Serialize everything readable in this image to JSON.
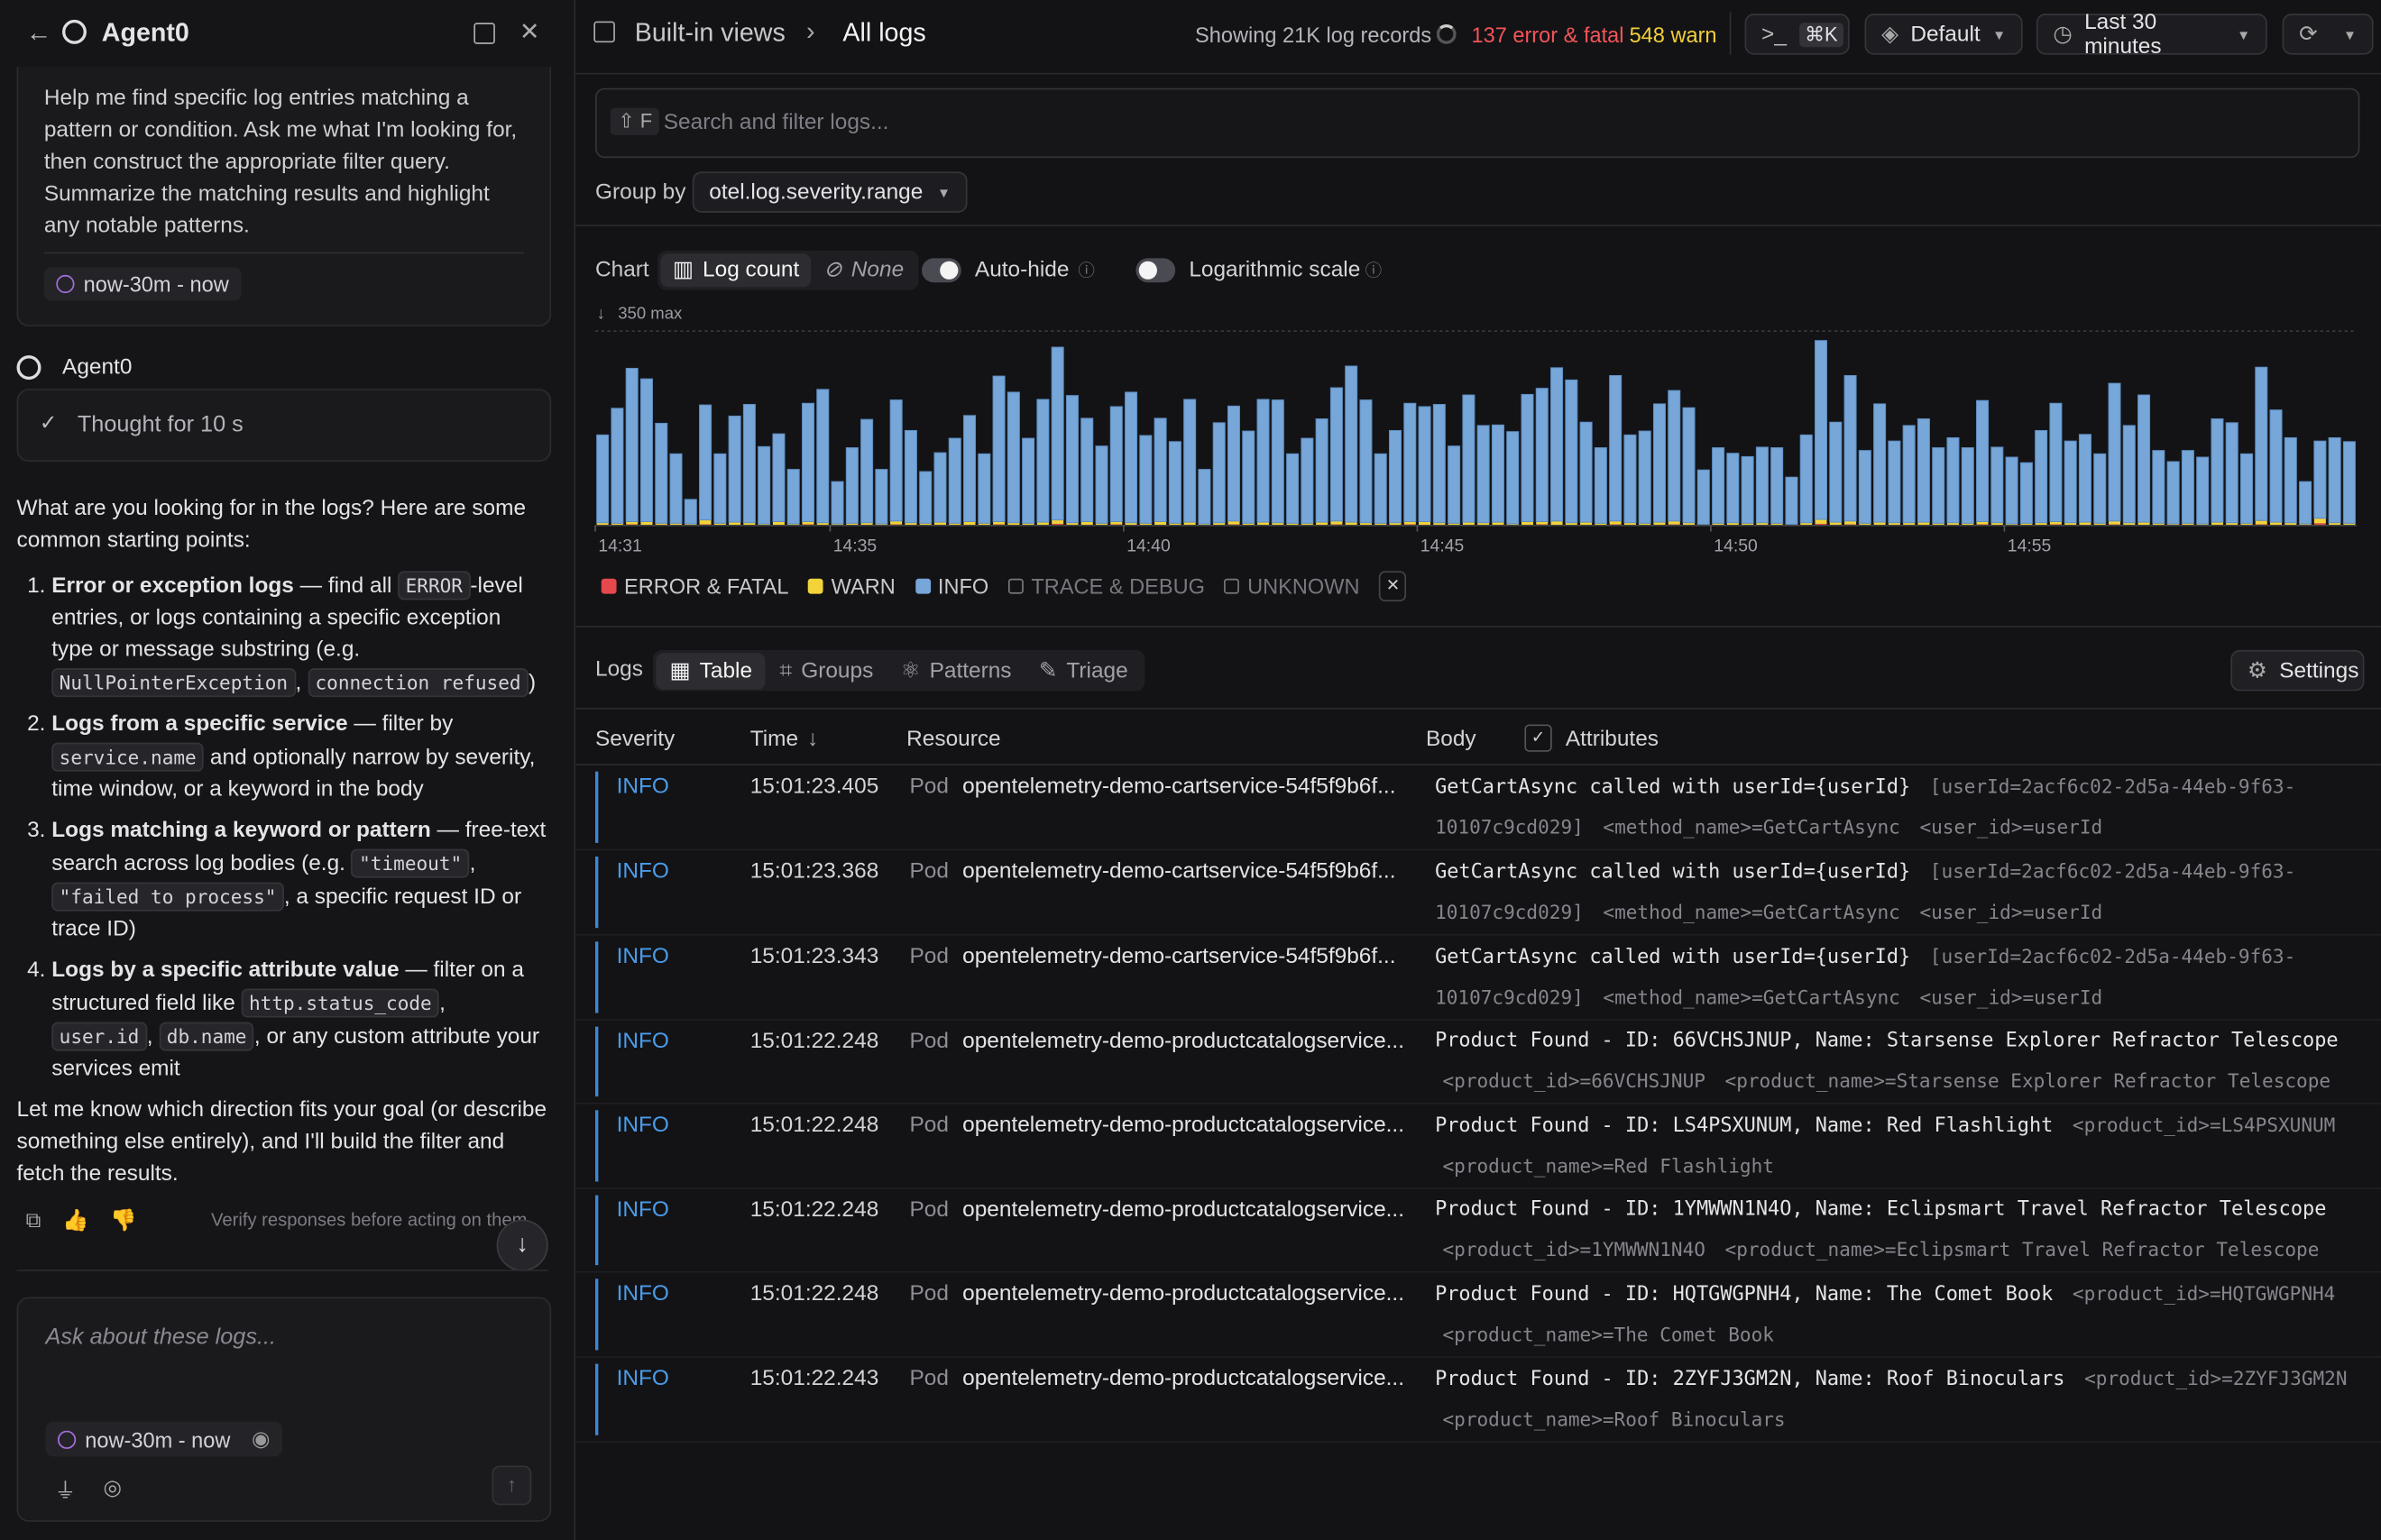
{
  "sidebar": {
    "title": "Agent0",
    "prompt": "Help me find specific log entries matching a pattern or condition. Ask me what I'm looking for, then construct the appropriate filter query. Summarize the matching results and highlight any notable patterns.",
    "prompt_range": "now-30m - now",
    "agent_name": "Agent0",
    "thought": "Thought for 10 s",
    "intro": "What are you looking for in the logs? Here are some common starting points:",
    "items": [
      {
        "title": "Error or exception logs",
        "parts": [
          " — find all ",
          {
            "code": "ERROR"
          },
          "-level entries, or logs containing a specific exception type or message substring (e.g. ",
          {
            "code": "NullPointerException"
          },
          ", ",
          {
            "code": "connection refused"
          },
          ")"
        ]
      },
      {
        "title": "Logs from a specific service",
        "parts": [
          " — filter by ",
          {
            "code": "service.name"
          },
          " and optionally narrow by severity, time window, or a keyword in the body"
        ]
      },
      {
        "title": "Logs matching a keyword or pattern",
        "parts": [
          " — free-text search across log bodies (e.g. ",
          {
            "code": "\"timeout\""
          },
          ", ",
          {
            "code": "\"failed to process\""
          },
          ", a specific request ID or trace ID)"
        ]
      },
      {
        "title": "Logs by a specific attribute value",
        "parts": [
          " — filter on a structured field like ",
          {
            "code": "http.status_code"
          },
          ", ",
          {
            "code": "user.id"
          },
          ", ",
          {
            "code": "db.name"
          },
          ", or any custom attribute your services emit"
        ]
      }
    ],
    "outro": "Let me know which direction fits your goal (or describe something else entirely), and I'll build the filter and fetch the results.",
    "disclaimer": "Verify responses before acting on them.",
    "input_placeholder": "Ask about these logs...",
    "input_range": "now-30m - now"
  },
  "header": {
    "breadcrumb": [
      "Built-in views",
      "All logs"
    ],
    "record_count": "Showing 21K log records",
    "errors": "137 error & fatal",
    "warnings": "548 warn",
    "shortcut": "⌘K",
    "view": "Default",
    "time_range": "Last 30 minutes"
  },
  "filters": {
    "search_key": "F",
    "search_placeholder": "Search and filter logs...",
    "group_by_label": "Group by",
    "group_by": "otel.log.severity.range",
    "chart_label": "Chart",
    "chart_modes": [
      "Log count",
      "None"
    ],
    "auto_hide": "Auto-hide",
    "log_scale_label": "Logarithmic scale"
  },
  "chart_data": {
    "type": "bar",
    "stacked": true,
    "log_scale": false,
    "xlim": [
      0,
      120
    ],
    "xticks": [
      {
        "value": 0,
        "label": "14:31"
      },
      {
        "value": 16,
        "label": "14:35"
      },
      {
        "value": 36,
        "label": "14:40"
      },
      {
        "value": 56,
        "label": "14:45"
      },
      {
        "value": 76,
        "label": "14:50"
      },
      {
        "value": 96,
        "label": "14:55"
      }
    ],
    "ylim": [
      0,
      350
    ],
    "yticks": [
      {
        "value": 350,
        "label": "350 max"
      }
    ],
    "series": [
      {
        "name": "ERROR & FATAL",
        "color": "#e5484d",
        "values": [
          1,
          1,
          2,
          1,
          0,
          1,
          1,
          2,
          1,
          1,
          1,
          0,
          1,
          1,
          2,
          1,
          1,
          1,
          0,
          1,
          2,
          1,
          1,
          1,
          0,
          1,
          1,
          2,
          1,
          1,
          1,
          3,
          1,
          1,
          1,
          2,
          1,
          1,
          1,
          0,
          1,
          1,
          1,
          2,
          1,
          1,
          1,
          1,
          0,
          1,
          2,
          1,
          1,
          1,
          1,
          2,
          1,
          1,
          1,
          1,
          1,
          1,
          0,
          1,
          2,
          1,
          1,
          1,
          1,
          2,
          1,
          1,
          1,
          2,
          1,
          0,
          1,
          1,
          1,
          1,
          1,
          0,
          1,
          3,
          1,
          2,
          1,
          1,
          1,
          1,
          1,
          1,
          1,
          1,
          2,
          1,
          0,
          1,
          1,
          2,
          1,
          1,
          1,
          2,
          1,
          1,
          1,
          1,
          1,
          0,
          1,
          1,
          1,
          2,
          1,
          1,
          1,
          4,
          1,
          1
        ]
      },
      {
        "name": "WARN",
        "color": "#f2d33a",
        "values": [
          4,
          3,
          5,
          6,
          4,
          3,
          2,
          8,
          3,
          5,
          4,
          3,
          6,
          2,
          5,
          4,
          2,
          3,
          5,
          2,
          6,
          4,
          3,
          5,
          4,
          6,
          3,
          5,
          4,
          3,
          5,
          7,
          4,
          6,
          3,
          5,
          4,
          3,
          6,
          4,
          5,
          2,
          4,
          6,
          3,
          5,
          4,
          3,
          4,
          5,
          6,
          5,
          4,
          3,
          4,
          5,
          6,
          4,
          3,
          5,
          4,
          5,
          3,
          6,
          5,
          7,
          4,
          5,
          3,
          6,
          4,
          3,
          5,
          6,
          4,
          2,
          3,
          4,
          3,
          4,
          3,
          2,
          4,
          8,
          5,
          6,
          3,
          5,
          4,
          4,
          5,
          3,
          4,
          3,
          5,
          4,
          3,
          3,
          4,
          5,
          4,
          5,
          3,
          6,
          4,
          5,
          3,
          2,
          3,
          3,
          5,
          4,
          3,
          7,
          5,
          4,
          2,
          9,
          4,
          3
        ]
      },
      {
        "name": "INFO",
        "color": "#77a6d8",
        "values": [
          158,
          207,
          276,
          257,
          180,
          125,
          44,
          207,
          125,
          191,
          213,
          139,
          158,
          98,
          213,
          240,
          76,
          136,
          186,
          98,
          218,
          166,
          93,
          125,
          153,
          191,
          125,
          262,
          235,
          153,
          221,
          311,
          229,
          186,
          139,
          207,
          235,
          158,
          186,
          147,
          221,
          98,
          180,
          207,
          166,
          221,
          221,
          125,
          153,
          186,
          240,
          281,
          221,
          125,
          166,
          213,
          207,
          213,
          139,
          229,
          175,
          175,
          166,
          229,
          240,
          276,
          257,
          180,
          136,
          262,
          158,
          166,
          213,
          235,
          207,
          98,
          136,
          125,
          120,
          136,
          136,
          85,
          158,
          322,
          180,
          262,
          131,
          213,
          147,
          175,
          186,
          136,
          153,
          136,
          218,
          136,
          120,
          109,
          166,
          213,
          147,
          158,
          125,
          248,
          175,
          229,
          131,
          112,
          131,
          120,
          186,
          180,
          125,
          276,
          202,
          153,
          76,
          139,
          153,
          147
        ]
      }
    ],
    "hidden_legend": [
      "TRACE & DEBUG",
      "UNKNOWN"
    ]
  },
  "logs": {
    "label": "Logs",
    "tabs": [
      "Table",
      "Groups",
      "Patterns",
      "Triage"
    ],
    "settings": "Settings",
    "columns": [
      "Severity",
      "Time",
      "Resource",
      "Body",
      "Attributes"
    ],
    "rows": [
      {
        "severity": "INFO",
        "time": "15:01:23.405",
        "resource_type": "Pod",
        "resource": "opentelemetry-demo-cartservice-54f5f9b6f...",
        "body": "GetCartAsync called with userId={userId}",
        "attributes": [
          "[userId=2acf6c02-2d5a-44eb-9f63-10107c9cd029]",
          "<method_name>=GetCartAsync",
          "<user_id>=userId"
        ]
      },
      {
        "severity": "INFO",
        "time": "15:01:23.368",
        "resource_type": "Pod",
        "resource": "opentelemetry-demo-cartservice-54f5f9b6f...",
        "body": "GetCartAsync called with userId={userId}",
        "attributes": [
          "[userId=2acf6c02-2d5a-44eb-9f63-10107c9cd029]",
          "<method_name>=GetCartAsync",
          "<user_id>=userId"
        ]
      },
      {
        "severity": "INFO",
        "time": "15:01:23.343",
        "resource_type": "Pod",
        "resource": "opentelemetry-demo-cartservice-54f5f9b6f...",
        "body": "GetCartAsync called with userId={userId}",
        "attributes": [
          "[userId=2acf6c02-2d5a-44eb-9f63-10107c9cd029]",
          "<method_name>=GetCartAsync",
          "<user_id>=userId"
        ]
      },
      {
        "severity": "INFO",
        "time": "15:01:22.248",
        "resource_type": "Pod",
        "resource": "opentelemetry-demo-productcatalogservice...",
        "body": "Product Found - ID: 66VCHSJNUP, Name: Starsense Explorer Refractor Telescope",
        "attributes": [
          "<product_id>=66VCHSJNUP",
          "<product_name>=Starsense Explorer Refractor Telescope"
        ]
      },
      {
        "severity": "INFO",
        "time": "15:01:22.248",
        "resource_type": "Pod",
        "resource": "opentelemetry-demo-productcatalogservice...",
        "body": "Product Found - ID: LS4PSXUNUM, Name: Red Flashlight",
        "attributes": [
          "<product_id>=LS4PSXUNUM",
          "<product_name>=Red Flashlight"
        ]
      },
      {
        "severity": "INFO",
        "time": "15:01:22.248",
        "resource_type": "Pod",
        "resource": "opentelemetry-demo-productcatalogservice...",
        "body": "Product Found - ID: 1YMWWN1N4O, Name: Eclipsmart Travel Refractor Telescope",
        "attributes": [
          "<product_id>=1YMWWN1N4O",
          "<product_name>=Eclipsmart Travel Refractor Telescope"
        ]
      },
      {
        "severity": "INFO",
        "time": "15:01:22.248",
        "resource_type": "Pod",
        "resource": "opentelemetry-demo-productcatalogservice...",
        "body": "Product Found - ID: HQTGWGPNH4, Name: The Comet Book",
        "attributes": [
          "<product_id>=HQTGWGPNH4",
          "<product_name>=The Comet Book"
        ]
      },
      {
        "severity": "INFO",
        "time": "15:01:22.243",
        "resource_type": "Pod",
        "resource": "opentelemetry-demo-productcatalogservice...",
        "body": "Product Found - ID: 2ZYFJ3GM2N, Name: Roof Binoculars",
        "attributes": [
          "<product_id>=2ZYFJ3GM2N",
          "<product_name>=Roof Binoculars"
        ]
      }
    ]
  }
}
